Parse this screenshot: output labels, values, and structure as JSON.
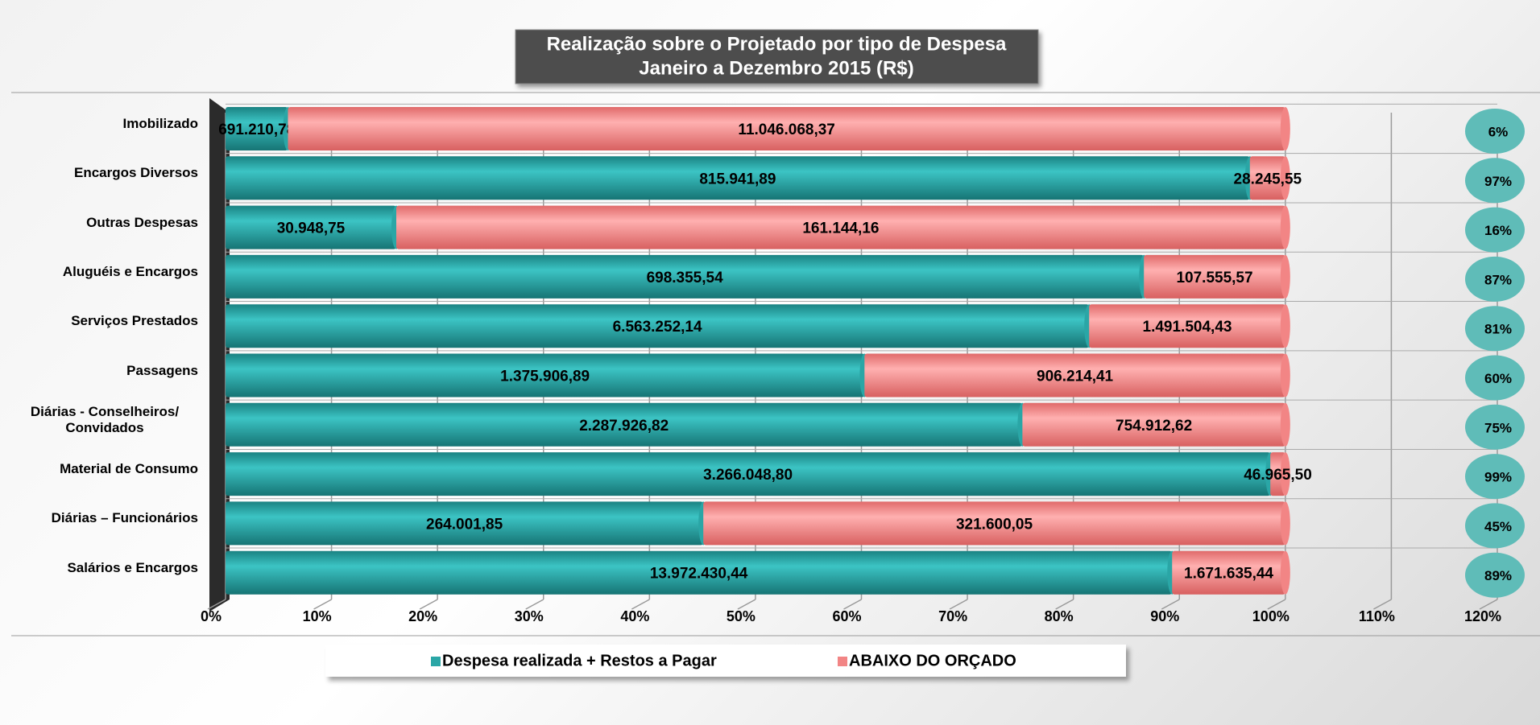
{
  "chart_data": {
    "type": "bar",
    "orientation": "horizontal",
    "stacking": "percent",
    "title": "Realização sobre o Projetado por tipo de Despesa",
    "subtitle": "Janeiro a Dezembro 2015 (R$)",
    "categories": [
      "Imobilizado",
      "Encargos Diversos",
      "Outras Despesas",
      "Aluguéis e Encargos",
      "Serviços Prestados",
      "Passagens",
      "Diárias - Conselheiros/ Convidados",
      "Material de Consumo",
      "Diárias – Funcionários",
      "Salários e Encargos"
    ],
    "series": [
      {
        "name": "Despesa realizada + Restos a Pagar",
        "color": "#2aa6a6",
        "values": [
          691210.78,
          815941.89,
          30948.75,
          698355.54,
          6563252.14,
          1375906.89,
          2287926.82,
          3266048.8,
          264001.85,
          13972430.44
        ],
        "value_labels": [
          "691.210,78",
          "815.941,89",
          "30.948,75",
          "698.355,54",
          "6.563.252,14",
          "1.375.906,89",
          "2.287.926,82",
          "3.266.048,80",
          "264.001,85",
          "13.972.430,44"
        ]
      },
      {
        "name": "ABAIXO DO ORÇADO",
        "color": "#f28585",
        "values": [
          11046068.37,
          28245.55,
          161144.16,
          107555.57,
          1491504.43,
          906214.41,
          754912.62,
          46965.5,
          321600.05,
          1671635.44
        ],
        "value_labels": [
          "11.046.068,37",
          "28.245,55",
          "161.144,16",
          "107.555,57",
          "1.491.504,43",
          "906.214,41",
          "754.912,62",
          "46.965,50",
          "321.600,05",
          "1.671.635,44"
        ]
      }
    ],
    "share": {
      "color": "#5fbcb8",
      "values": [
        6,
        97,
        16,
        87,
        81,
        60,
        75,
        99,
        45,
        89
      ],
      "value_labels": [
        "6%",
        "97%",
        "16%",
        "87%",
        "81%",
        "60%",
        "75%",
        "99%",
        "45%",
        "89%"
      ]
    },
    "xlim": [
      0,
      120
    ],
    "xticks": [
      {
        "value": 0,
        "label": "0%"
      },
      {
        "value": 10,
        "label": "10%"
      },
      {
        "value": 20,
        "label": "20%"
      },
      {
        "value": 30,
        "label": "30%"
      },
      {
        "value": 40,
        "label": "40%"
      },
      {
        "value": 50,
        "label": "50%"
      },
      {
        "value": 60,
        "label": "60%"
      },
      {
        "value": 70,
        "label": "70%"
      },
      {
        "value": 80,
        "label": "80%"
      },
      {
        "value": 90,
        "label": "90%"
      },
      {
        "value": 100,
        "label": "100%"
      },
      {
        "value": 110,
        "label": "110%"
      },
      {
        "value": 120,
        "label": "120%"
      }
    ],
    "grid": true,
    "legend": "bottom"
  }
}
